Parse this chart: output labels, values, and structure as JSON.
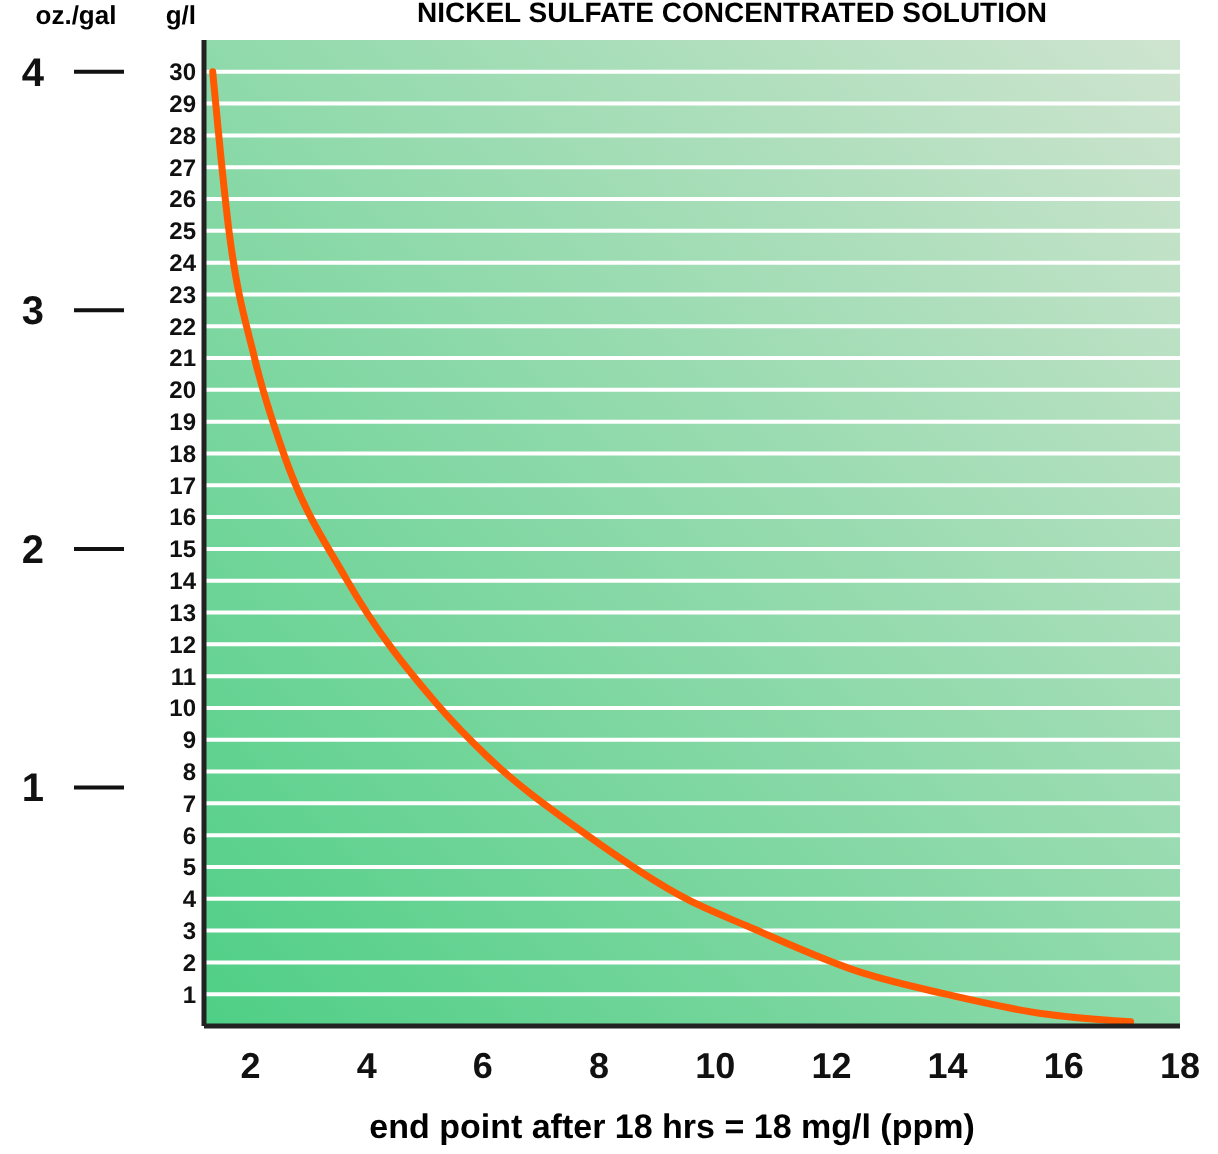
{
  "chart_data": {
    "type": "line",
    "title": "NICKEL SULFATE CONCENTRATED SOLUTION",
    "xlabel": "end point after 18 hrs = 18 mg/l (ppm)",
    "ylabel": "g/l",
    "y2label": "oz./gal",
    "x": [
      1.35,
      1.63,
      2.07,
      2.57,
      3.65,
      5.22,
      6.06,
      7.74,
      9.53,
      10.54,
      12.55,
      13.9,
      15.58,
      17.15
    ],
    "series": [
      {
        "color": "#ff5a00",
        "values": [
          30,
          25,
          21,
          18,
          14.05,
          10.1,
          8.5,
          6.07,
          3.97,
          3.15,
          1.66,
          1.03,
          0.4,
          0.13
        ]
      }
    ],
    "xlim": [
      1.2,
      18
    ],
    "xticks": [
      2,
      4,
      6,
      8,
      10,
      12,
      14,
      16,
      18
    ],
    "ylim": [
      0,
      31
    ],
    "yticks": [
      1,
      2,
      3,
      4,
      5,
      6,
      7,
      8,
      9,
      10,
      11,
      12,
      13,
      14,
      15,
      16,
      17,
      18,
      19,
      20,
      21,
      22,
      23,
      24,
      25,
      26,
      27,
      28,
      29,
      30
    ],
    "y2lim": [
      0,
      4.1333
    ],
    "y2ticks": [
      1,
      2,
      3,
      4
    ],
    "grid": "y",
    "line_style": "solid",
    "marker": "none"
  }
}
